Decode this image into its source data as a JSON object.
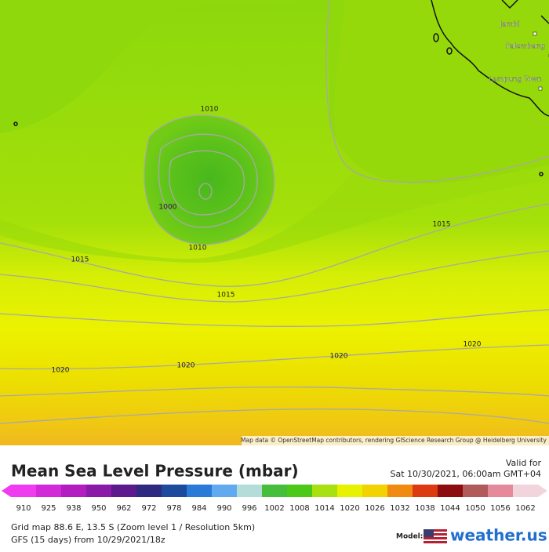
{
  "map": {
    "contour_labels": [
      "1010",
      "1000",
      "1010",
      "1015",
      "1015",
      "1015",
      "1020",
      "1020",
      "1020",
      "1020"
    ],
    "cities": [
      "Jambi",
      "Palembang",
      "Lampung Town"
    ],
    "attribution": "Map data © OpenStreetMap contributors, rendering GIScience Research Group @ Heidelberg University"
  },
  "header": {
    "title": "Mean Sea Level Pressure (mbar)",
    "valid_label": "Valid for",
    "valid_time": "Sat 10/30/2021, 06:00am GMT+04"
  },
  "legend": {
    "ticks": [
      910,
      925,
      938,
      950,
      962,
      972,
      978,
      984,
      990,
      996,
      1002,
      1008,
      1014,
      1020,
      1026,
      1032,
      1038,
      1044,
      1050,
      1056,
      1062
    ],
    "colors": [
      "#f03cf0",
      "#d22ad8",
      "#b21cc0",
      "#8a1aa8",
      "#5c1a8c",
      "#2e2a80",
      "#1c4a9c",
      "#2a7ad8",
      "#62aaf0",
      "#b4dcd8",
      "#46be3c",
      "#4cc81a",
      "#a8e010",
      "#e6f200",
      "#f2d200",
      "#f08a10",
      "#dc3a10",
      "#8c0c10",
      "#b05a5a",
      "#e48a9a",
      "#f2d4dc"
    ]
  },
  "footer": {
    "grid": "Grid map 88.6 E, 13.5 S (Zoom level 1 / Resolution 5km)",
    "model_run": "GFS (15 days)  from  10/29/2021/18z",
    "model_label": "Model:",
    "brand": "weather.us"
  }
}
